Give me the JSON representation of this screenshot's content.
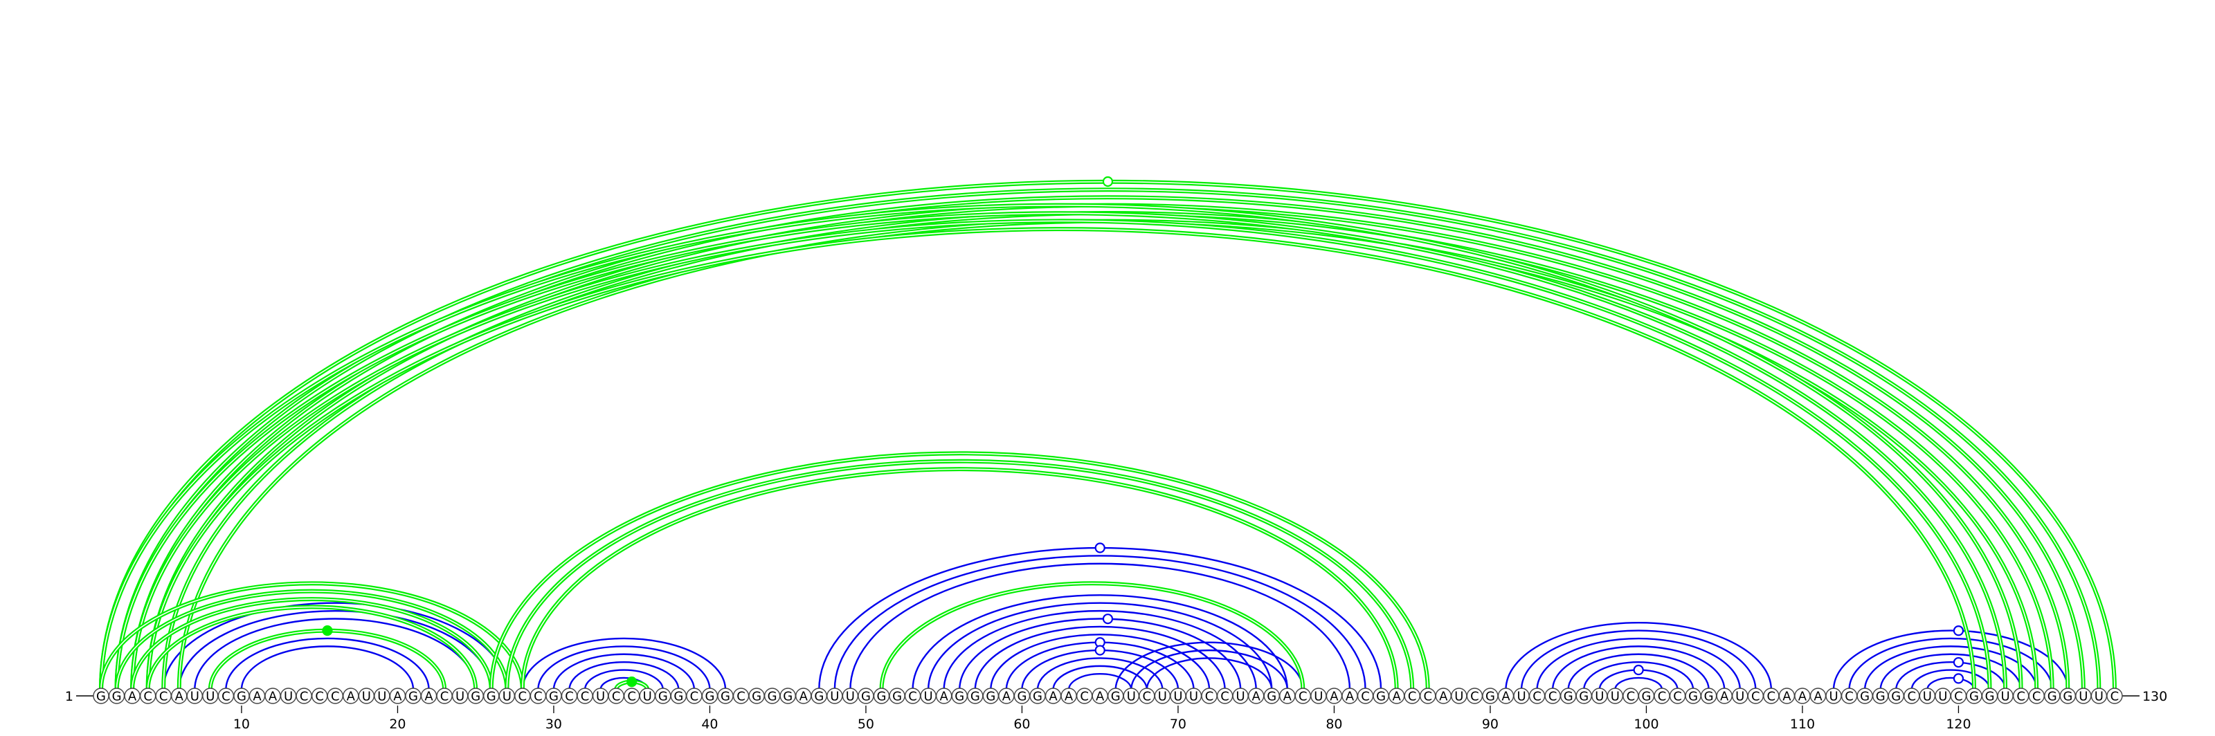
{
  "sequence": "GGACCAUUCGAAUCCCAUUAGACUGGUCCGCCUCCUGGCGGCGGGAGUUGGGCUAGGGAGGAACAGUCUUUCCUAGACUAACGACCAUCGAUCCGGUUCGCCGGAUCCAAAUCGGGCUUCGGUCCGGUUC",
  "start_label": "1",
  "end_label": "130",
  "ticks": [
    10,
    20,
    30,
    40,
    50,
    60,
    70,
    80,
    90,
    100,
    110,
    120
  ],
  "colors": {
    "arc_a": "#0000ee",
    "arc_b": "#00ee00"
  },
  "blue_arcs": [
    [
      5,
      27
    ],
    [
      6,
      26
    ],
    [
      7,
      25
    ],
    [
      9,
      22
    ],
    [
      10,
      21
    ],
    [
      28,
      41
    ],
    [
      29,
      40
    ],
    [
      30,
      39
    ],
    [
      31,
      38
    ],
    [
      32,
      37
    ],
    [
      33,
      36
    ],
    [
      47,
      83
    ],
    [
      48,
      82
    ],
    [
      49,
      81
    ],
    [
      53,
      77
    ],
    [
      54,
      76
    ],
    [
      55,
      75
    ],
    [
      56,
      74
    ],
    [
      57,
      73
    ],
    [
      58,
      72
    ],
    [
      59,
      71
    ],
    [
      60,
      70
    ],
    [
      61,
      69
    ],
    [
      62,
      68
    ],
    [
      63,
      67
    ],
    [
      66,
      78
    ],
    [
      67,
      77
    ],
    [
      68,
      76
    ],
    [
      91,
      108
    ],
    [
      92,
      107
    ],
    [
      93,
      106
    ],
    [
      94,
      105
    ],
    [
      95,
      104
    ],
    [
      96,
      103
    ],
    [
      97,
      102
    ],
    [
      98,
      101
    ],
    [
      112,
      127
    ],
    [
      113,
      126
    ],
    [
      114,
      125
    ],
    [
      115,
      124
    ],
    [
      116,
      123
    ],
    [
      117,
      122
    ],
    [
      118,
      121
    ]
  ],
  "green_arcs": [
    [
      1,
      130
    ],
    [
      2,
      129
    ],
    [
      3,
      128
    ],
    [
      4,
      127
    ],
    [
      5,
      126
    ],
    [
      6,
      125
    ],
    [
      1,
      124
    ],
    [
      2,
      123
    ],
    [
      3,
      122
    ],
    [
      4,
      121
    ],
    [
      1,
      28
    ],
    [
      2,
      27
    ],
    [
      3,
      26
    ],
    [
      4,
      25
    ],
    [
      8,
      23
    ],
    [
      26,
      86
    ],
    [
      27,
      85
    ],
    [
      28,
      84
    ],
    [
      51,
      78
    ],
    [
      34,
      36
    ]
  ],
  "markers": [
    {
      "pos": 65.5,
      "arc": [
        56,
        74
      ],
      "color": "arc_a",
      "filled": false
    },
    {
      "pos": 65.0,
      "arc": [
        47,
        83
      ],
      "color": "arc_a",
      "filled": false
    },
    {
      "pos": 65.0,
      "arc": [
        59,
        71
      ],
      "color": "arc_a",
      "filled": false
    },
    {
      "pos": 65.0,
      "arc": [
        60,
        70
      ],
      "color": "arc_a",
      "filled": false
    },
    {
      "pos": 99.5,
      "arc": [
        97,
        102
      ],
      "color": "arc_a",
      "filled": false
    },
    {
      "pos": 120.0,
      "arc": [
        112,
        127
      ],
      "color": "arc_a",
      "filled": false
    },
    {
      "pos": 120.0,
      "arc": [
        116,
        123
      ],
      "color": "arc_a",
      "filled": false
    },
    {
      "pos": 120.0,
      "arc": [
        118,
        121
      ],
      "color": "arc_a",
      "filled": false
    },
    {
      "pos": 15.5,
      "arc": [
        8,
        23
      ],
      "color": "arc_b",
      "filled": true
    },
    {
      "pos": 35.0,
      "arc": [
        34,
        36
      ],
      "color": "arc_b",
      "filled": true
    },
    {
      "pos": 65.5,
      "arc": [
        1,
        130
      ],
      "color": "arc_b",
      "filled": false
    }
  ]
}
